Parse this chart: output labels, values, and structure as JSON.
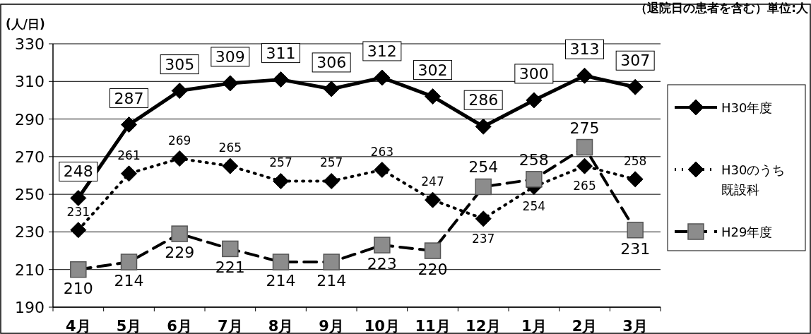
{
  "chart_data": {
    "type": "line",
    "ylabel": "(人/日)",
    "annotations": [
      "（退院日の患者を含む）単位:人"
    ],
    "categories": [
      "4月",
      "5月",
      "6月",
      "7月",
      "8月",
      "9月",
      "10月",
      "11月",
      "12月",
      "1月",
      "2月",
      "3月"
    ],
    "series": [
      {
        "name": "H30年度",
        "color": "#000000",
        "marker": "diamond",
        "line_style": "solid",
        "values": [
          248,
          287,
          305,
          309,
          311,
          306,
          312,
          302,
          286,
          300,
          313,
          307
        ]
      },
      {
        "name": "H30のうち既設科",
        "color": "#000000",
        "marker": "diamond",
        "line_style": "dotted",
        "values": [
          231,
          261,
          269,
          265,
          257,
          257,
          263,
          247,
          237,
          254,
          265,
          258
        ]
      },
      {
        "name": "H29年度",
        "color": "#8c8c8c",
        "marker": "square",
        "line_style": "dashed",
        "values": [
          210,
          214,
          229,
          221,
          214,
          214,
          223,
          220,
          254,
          258,
          275,
          231
        ]
      }
    ],
    "ylim": [
      190,
      330
    ],
    "yticks": [
      190,
      210,
      230,
      250,
      270,
      290,
      310,
      330
    ],
    "grid": "y",
    "legend": "right",
    "data_labels": true
  }
}
